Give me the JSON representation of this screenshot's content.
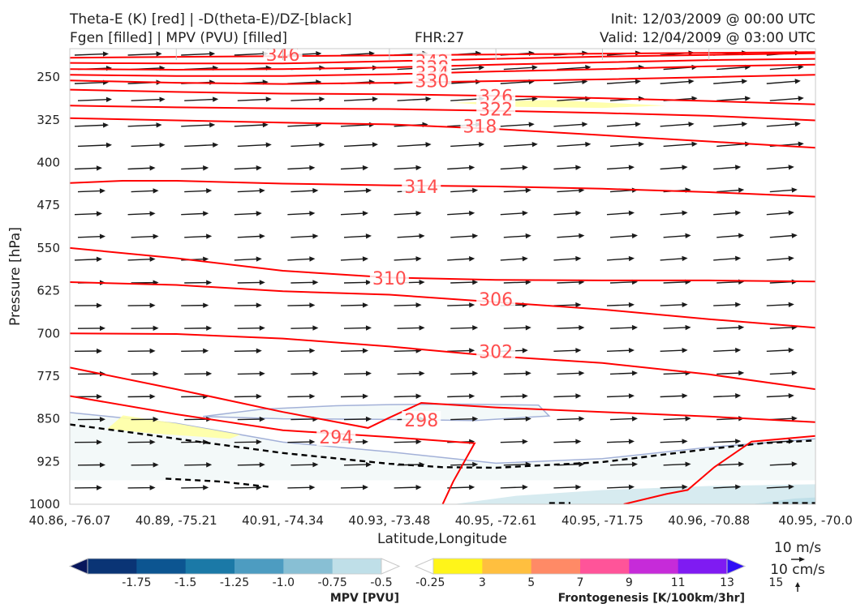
{
  "header": {
    "title_line1": "Theta-E (K) [red] | -D(theta-E)/DZ-[black]",
    "title_line2": "Fgen [filled] | MPV (PVU) [filled]",
    "fhr": "FHR:27",
    "init": "Init: 12/03/2009 @ 00:00 UTC",
    "valid": "Valid: 12/04/2009 @ 03:00 UTC"
  },
  "chart_data": {
    "type": "cross-section",
    "ylabel": "Pressure [hPa]",
    "xlabel": "Latitude,Longitude",
    "y_axis": {
      "scale": "pressure (inverted)",
      "range": [
        1000,
        200
      ],
      "ticks": [
        250,
        325,
        400,
        475,
        550,
        625,
        700,
        775,
        850,
        925,
        1000
      ]
    },
    "x_ticks": [
      "40.86, -76.07",
      "40.89, -75.21",
      "40.91, -74.34",
      "40.93, -73.48",
      "40.95, -72.61",
      "40.95, -71.75",
      "40.96, -70.88",
      "40.95, -70.0"
    ],
    "theta_e_color": "#ff0000",
    "theta_e_contours": [
      {
        "label": "346",
        "x": [
          0,
          7
        ],
        "y": [
          216,
          206
        ]
      },
      {
        "label": "342",
        "x": [
          0,
          1,
          2,
          3,
          4,
          5,
          6,
          7
        ],
        "y": [
          225,
          226,
          226,
          222,
          218,
          214,
          211,
          208
        ]
      },
      {
        "label": "338",
        "x": [
          0,
          1,
          2,
          3,
          4,
          5,
          6,
          7
        ],
        "y": [
          236,
          237,
          236,
          233,
          228,
          224,
          220,
          218
        ]
      },
      {
        "label": "334",
        "x": [
          0,
          1,
          2,
          3,
          4,
          5,
          6,
          7
        ],
        "y": [
          246,
          248,
          248,
          245,
          240,
          236,
          231,
          228
        ]
      },
      {
        "label": "330",
        "x": [
          0,
          1,
          2,
          3,
          4,
          5,
          6,
          7
        ],
        "y": [
          256,
          260,
          262,
          260,
          257,
          254,
          250,
          246
        ]
      },
      {
        "label": "326",
        "x": [
          0,
          1,
          2,
          3,
          4,
          5,
          6,
          7
        ],
        "y": [
          272,
          276,
          279,
          280,
          283,
          287,
          292,
          298
        ]
      },
      {
        "label": "322",
        "x": [
          0,
          1,
          2,
          3,
          4,
          5,
          6,
          7
        ],
        "y": [
          300,
          303,
          305,
          306,
          309,
          313,
          318,
          326
        ]
      },
      {
        "label": "318",
        "x": [
          0,
          1,
          2,
          3,
          4,
          5,
          6,
          7
        ],
        "y": [
          322,
          326,
          330,
          333,
          341,
          352,
          363,
          374
        ]
      },
      {
        "label": "314",
        "x": [
          0,
          0.5,
          1,
          2,
          3,
          4,
          5,
          6,
          7
        ],
        "y": [
          436,
          432,
          432,
          437,
          440,
          442,
          446,
          452,
          460
        ]
      },
      {
        "label": "310",
        "x": [
          0,
          1,
          2,
          3,
          4,
          5,
          6,
          7
        ],
        "y": [
          550,
          568,
          590,
          602,
          606,
          607,
          607,
          609
        ]
      },
      {
        "label": "306",
        "x": [
          0,
          1,
          2,
          3,
          4,
          5,
          6,
          7
        ],
        "y": [
          610,
          615,
          626,
          632,
          645,
          658,
          675,
          690
        ]
      },
      {
        "label": "302",
        "x": [
          0,
          1,
          2,
          3,
          4,
          5,
          6,
          7
        ],
        "y": [
          700,
          701,
          709,
          723,
          740,
          752,
          772,
          798
        ]
      },
      {
        "label": "298",
        "x": [
          0,
          1,
          2,
          2.8,
          3,
          3.3,
          4,
          5,
          6,
          7
        ],
        "y": [
          760,
          798,
          838,
          866,
          848,
          822,
          830,
          838,
          846,
          856
        ]
      },
      {
        "label": "294",
        "x": [
          0,
          1,
          2,
          3,
          3.8,
          3.6,
          3.5
        ],
        "y": [
          810,
          842,
          870,
          882,
          893,
          960,
          1000
        ]
      },
      {
        "label": "",
        "x": [
          5.2,
          5.6,
          5.8,
          6.05,
          6.4,
          7
        ],
        "y": [
          1000,
          982,
          975,
          935,
          890,
          880
        ]
      }
    ],
    "neg_dthetae_dz_contour": {
      "color": "#000000",
      "style": "dashed",
      "x": [
        0,
        0.5,
        1,
        2,
        3,
        3.5,
        4,
        5,
        6,
        6.5,
        7
      ],
      "y": [
        860,
        872,
        885,
        910,
        929,
        935,
        936,
        926,
        903,
        893,
        888
      ]
    },
    "mpv_region": {
      "fill": "#f3f9f9",
      "outline": "#a3b1d8",
      "x": [
        0,
        1,
        2,
        3,
        3.5,
        4,
        5,
        6,
        7
      ],
      "y": [
        839,
        858,
        891,
        908,
        918,
        928,
        920,
        900,
        885
      ]
    },
    "mpv_bubble": {
      "outline": "#a3b1d8",
      "x": [
        1.25,
        1.8,
        2.5,
        3.0,
        3.6,
        4.4,
        4.5,
        3.8,
        2.9,
        2.0,
        1.25
      ],
      "y": [
        846,
        833,
        827,
        825,
        824,
        826,
        845,
        853,
        851,
        850,
        846
      ]
    },
    "fgen_regions": [
      {
        "value": "3-5",
        "color": "#ffffa4",
        "x": [
          0.35,
          0.5,
          1.0,
          1.6,
          1.5,
          0.8,
          0.35
        ],
        "y": [
          868,
          844,
          858,
          878,
          885,
          876,
          868
        ]
      },
      {
        "value": "3-5",
        "color": "#ffffa4",
        "x": [
          3.6,
          4.5,
          5.6,
          5.0,
          4.2,
          3.6
        ],
        "y": [
          295,
          290,
          300,
          304,
          302,
          295
        ]
      }
    ],
    "mpv_colorbar": {
      "label": "MPV [PVU]",
      "ticks": [
        "-1.75",
        "-1.5",
        "-1.25",
        "-1.0",
        "-0.75",
        "-0.5",
        "-0.25"
      ],
      "colors": [
        "#08175c",
        "#0a3475",
        "#0c5591",
        "#1b79a7",
        "#4d9cc1",
        "#88bfd4",
        "#bfdfe8",
        "#ffffff"
      ]
    },
    "fgen_colorbar": {
      "label": "Frontogenesis [K/100km/3hr]",
      "ticks": [
        "3",
        "5",
        "7",
        "9",
        "11",
        "13",
        "15"
      ],
      "colors": [
        "#ffffff",
        "#fff519",
        "#ffbf3f",
        "#ff8a66",
        "#ff5499",
        "#c62bd9",
        "#7f1bf2",
        "#2f0ff5"
      ]
    },
    "wind_reference": {
      "horizontal": "10 m/s",
      "vertical": "10 cm/s"
    }
  }
}
